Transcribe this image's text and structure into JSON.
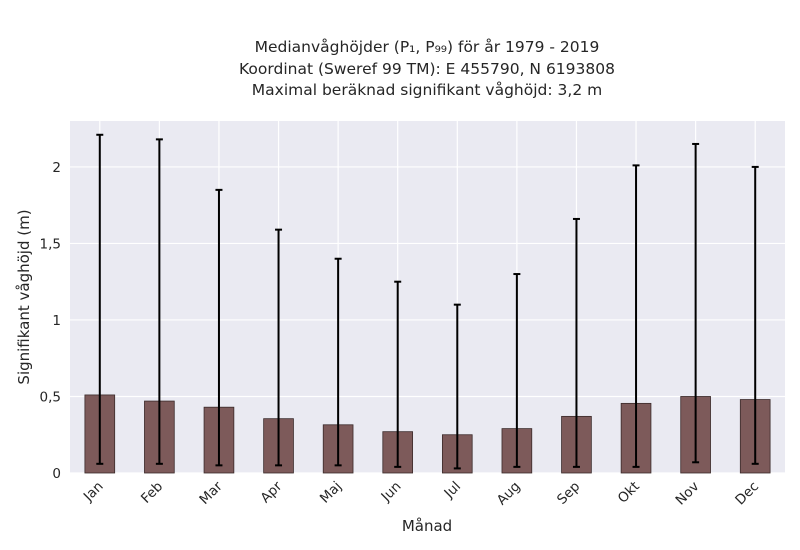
{
  "chart_data": {
    "type": "bar",
    "title_lines": [
      "Medianvåghöjder (P₁, P₉₉) för år 1979 - 2019",
      "Koordinat (Sweref 99 TM): E 455790, N 6193808",
      "Maximal beräknad signifikant våghöjd: 3,2 m"
    ],
    "xlabel": "Månad",
    "ylabel": "Signifikant våghöjd (m)",
    "categories": [
      "Jan",
      "Feb",
      "Mar",
      "Apr",
      "Maj",
      "Jun",
      "Jul",
      "Aug",
      "Sep",
      "Okt",
      "Nov",
      "Dec"
    ],
    "values": [
      0.51,
      0.47,
      0.43,
      0.355,
      0.315,
      0.27,
      0.25,
      0.29,
      0.37,
      0.455,
      0.5,
      0.48
    ],
    "error_low": [
      0.06,
      0.06,
      0.05,
      0.05,
      0.05,
      0.04,
      0.03,
      0.04,
      0.04,
      0.04,
      0.07,
      0.06
    ],
    "error_high": [
      2.21,
      2.18,
      1.85,
      1.59,
      1.4,
      1.25,
      1.1,
      1.3,
      1.66,
      2.01,
      2.15,
      2.0
    ],
    "ylim": [
      0,
      2.3
    ],
    "yticks": [
      0,
      0.5,
      1,
      1.5,
      2
    ],
    "ytick_labels": [
      "0",
      "0,5",
      "1",
      "1,5",
      "2"
    ],
    "grid": true,
    "colors": {
      "bar": "#7d5a5a",
      "bar_edge": "#3a2a2a",
      "errorbar": "#000000",
      "plot_bg": "#eaeaf2",
      "grid": "#ffffff"
    }
  }
}
